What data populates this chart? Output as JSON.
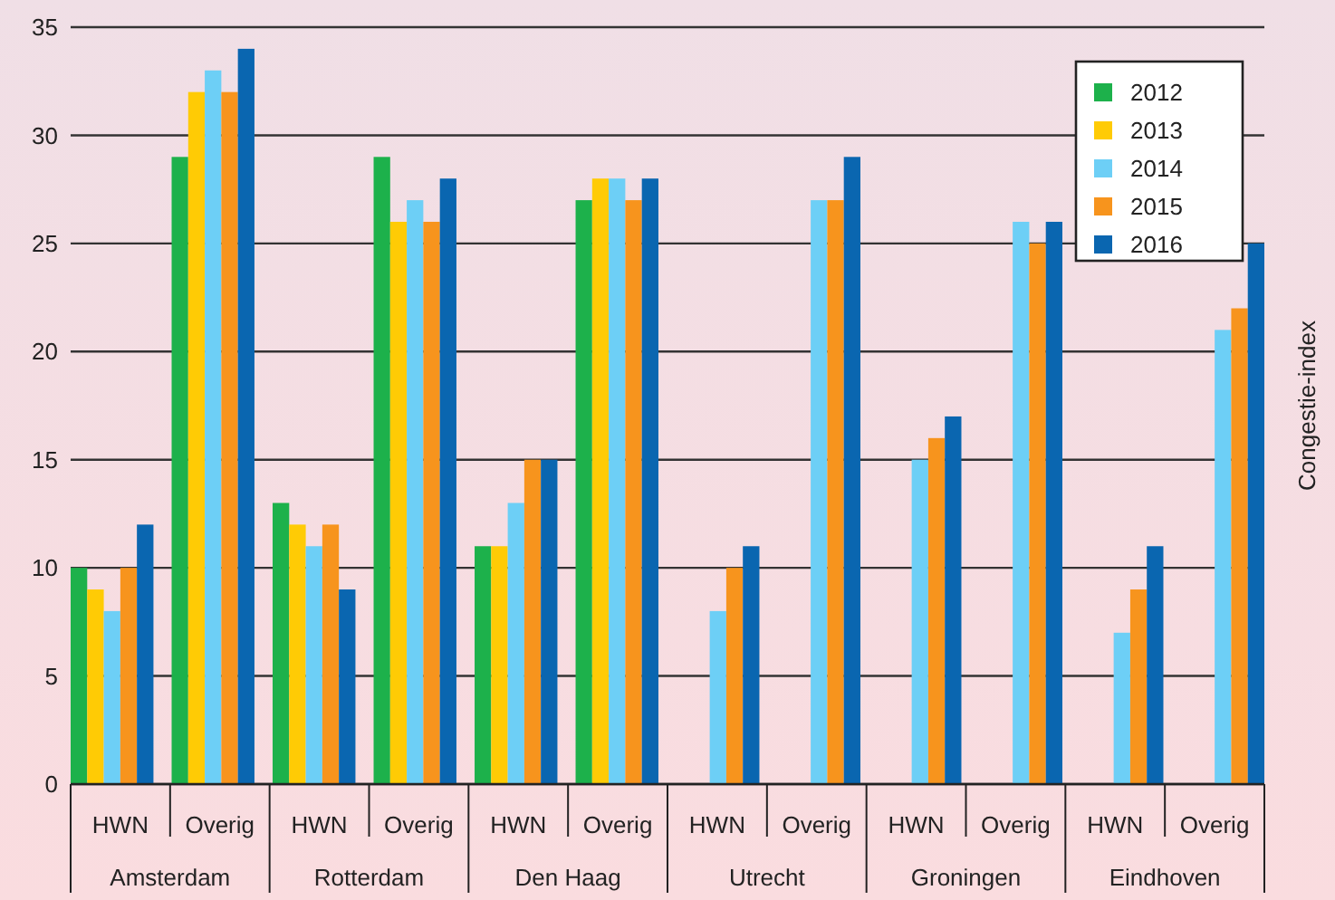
{
  "chart_data": {
    "type": "bar",
    "ylabel": "Congestie-index",
    "categories": [
      "HWN",
      "Overig",
      "HWN",
      "Overig",
      "HWN",
      "Overig",
      "HWN",
      "Overig",
      "HWN",
      "Overig",
      "HWN",
      "Overig"
    ],
    "annotations": [
      "Amsterdam",
      "Rotterdam",
      "Den Haag",
      "Utrecht",
      "Groningen",
      "Eindhoven"
    ],
    "series": [
      {
        "name": "2012",
        "color": "#1db14b",
        "values": [
          10,
          29,
          13,
          29,
          11,
          27,
          null,
          null,
          null,
          null,
          null,
          null
        ]
      },
      {
        "name": "2013",
        "color": "#ffcb05",
        "values": [
          9,
          32,
          12,
          26,
          11,
          28,
          null,
          null,
          null,
          null,
          null,
          null
        ]
      },
      {
        "name": "2014",
        "color": "#6dcff6",
        "values": [
          8,
          33,
          11,
          27,
          13,
          28,
          8,
          27,
          15,
          26,
          7,
          21
        ]
      },
      {
        "name": "2015",
        "color": "#f7941d",
        "values": [
          10,
          32,
          12,
          26,
          15,
          27,
          10,
          27,
          16,
          25,
          9,
          22
        ]
      },
      {
        "name": "2016",
        "color": "#0a66b0",
        "values": [
          12,
          34,
          9,
          28,
          15,
          28,
          11,
          29,
          17,
          26,
          11,
          25
        ]
      }
    ],
    "ylim": [
      0,
      35
    ],
    "yticks": [
      0,
      5,
      10,
      15,
      20,
      25,
      30,
      35
    ],
    "grid": "y",
    "legend": "top right"
  }
}
